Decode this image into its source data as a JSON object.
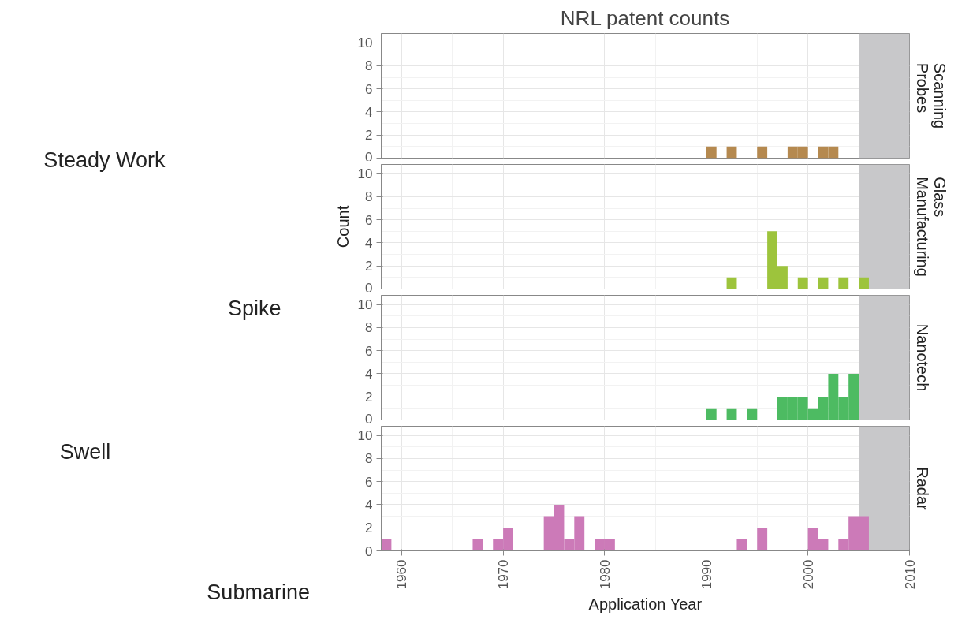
{
  "chart_data": [
    {
      "type": "other",
      "annotations": [
        "Steady Work",
        "Spike",
        "Swell",
        "Submarine"
      ]
    },
    {
      "type": "histogram",
      "title": "NRL patent counts",
      "bins": [
        1990,
        1991,
        1992,
        1993,
        1994,
        1995,
        1996,
        1997,
        1998,
        1999,
        2000,
        2001,
        2002,
        2003
      ],
      "series": [
        {
          "name": "Scanning Probes",
          "color": "#b5894f",
          "values": [
            1,
            0,
            1,
            0,
            0,
            1,
            0,
            0,
            1,
            1,
            0,
            1,
            1
          ]
        }
      ],
      "xlim": [
        1958,
        2010
      ],
      "xticks": [
        1960,
        1970,
        1980,
        1990,
        2000,
        2010
      ],
      "ylim": [
        0,
        10.8
      ],
      "yticks": [
        0,
        2,
        4,
        6,
        8,
        10
      ],
      "bands": [
        {
          "axis": "x",
          "from": 2005,
          "to": 2010,
          "color": "#c8c8ca"
        }
      ],
      "grid": true,
      "tick_labels": "y"
    },
    {
      "type": "histogram",
      "ylabel": "Count",
      "bins": [
        1992,
        1993,
        1994,
        1995,
        1996,
        1997,
        1998,
        1999,
        2000,
        2001,
        2002,
        2003,
        2004,
        2005,
        2006
      ],
      "series": [
        {
          "name": "Glass Manufacturing",
          "color": "#9dc43c",
          "values": [
            1,
            0,
            0,
            0,
            5,
            2,
            0,
            1,
            0,
            1,
            0,
            1,
            0,
            1
          ]
        }
      ],
      "xlim": [
        1958,
        2010
      ],
      "xticks": [
        1960,
        1970,
        1980,
        1990,
        2000,
        2010
      ],
      "ylim": [
        0,
        10.8
      ],
      "yticks": [
        0,
        2,
        4,
        6,
        8,
        10
      ],
      "bands": [
        {
          "axis": "x",
          "from": 2005,
          "to": 2010,
          "color": "#c8c8ca"
        }
      ],
      "grid": true,
      "tick_labels": "y"
    },
    {
      "type": "histogram",
      "bins": [
        1990,
        1991,
        1992,
        1993,
        1994,
        1995,
        1996,
        1997,
        1998,
        1999,
        2000,
        2001,
        2002,
        2003,
        2004,
        2005
      ],
      "series": [
        {
          "name": "Nanotech",
          "color": "#4dbb62",
          "values": [
            1,
            0,
            1,
            0,
            1,
            0,
            0,
            2,
            2,
            2,
            1,
            2,
            4,
            2,
            4
          ]
        }
      ],
      "xlim": [
        1958,
        2010
      ],
      "xticks": [
        1960,
        1970,
        1980,
        1990,
        2000,
        2010
      ],
      "ylim": [
        0,
        10.8
      ],
      "yticks": [
        0,
        2,
        4,
        6,
        8,
        10
      ],
      "bands": [
        {
          "axis": "x",
          "from": 2005,
          "to": 2010,
          "color": "#c8c8ca"
        }
      ],
      "grid": true,
      "tick_labels": "y"
    },
    {
      "type": "histogram",
      "xlabel": "Application Year",
      "bins": [
        1958,
        1959,
        1960,
        1961,
        1962,
        1963,
        1964,
        1965,
        1966,
        1967,
        1968,
        1969,
        1970,
        1971,
        1972,
        1973,
        1974,
        1975,
        1976,
        1977,
        1978,
        1979,
        1980,
        1981,
        1982,
        1983,
        1984,
        1985,
        1986,
        1987,
        1988,
        1989,
        1990,
        1991,
        1992,
        1993,
        1994,
        1995,
        1996,
        1997,
        1998,
        1999,
        2000,
        2001,
        2002,
        2003,
        2004,
        2005,
        2006
      ],
      "series": [
        {
          "name": "Radar",
          "color": "#cc7ab8",
          "values": [
            1,
            0,
            0,
            0,
            0,
            0,
            0,
            0,
            0,
            1,
            0,
            1,
            2,
            0,
            0,
            0,
            3,
            4,
            1,
            3,
            0,
            1,
            1,
            0,
            0,
            0,
            0,
            0,
            0,
            0,
            0,
            0,
            0,
            0,
            0,
            1,
            0,
            2,
            0,
            0,
            0,
            0,
            2,
            1,
            0,
            1,
            3,
            3
          ]
        }
      ],
      "xlim": [
        1958,
        2010
      ],
      "xticks": [
        1960,
        1970,
        1980,
        1990,
        2000,
        2010
      ],
      "ylim": [
        0,
        10.8
      ],
      "yticks": [
        0,
        2,
        4,
        6,
        8,
        10
      ],
      "bands": [
        {
          "axis": "x",
          "from": 2005,
          "to": 2010,
          "color": "#c8c8ca"
        }
      ],
      "grid": true
    }
  ]
}
